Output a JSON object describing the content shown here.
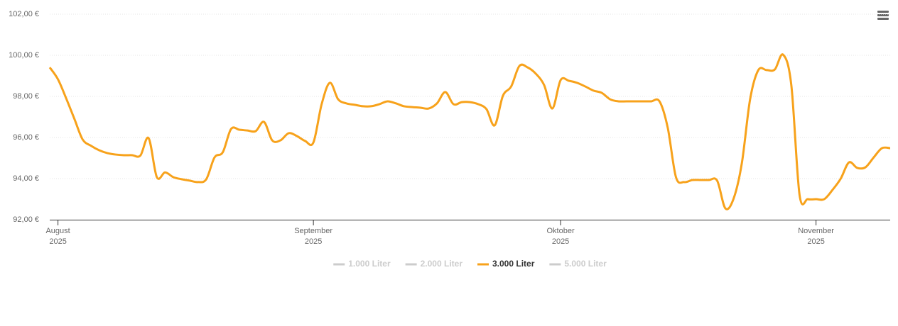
{
  "chart_data": {
    "type": "line",
    "categories": [
      null,
      "August 2025",
      null,
      null,
      null,
      null,
      null,
      null,
      null,
      null,
      null,
      null,
      null,
      null,
      null,
      null,
      null,
      null,
      null,
      null,
      null,
      null,
      null,
      null,
      null,
      null,
      null,
      null,
      null,
      null,
      null,
      null,
      "September 2025",
      null,
      null,
      null,
      null,
      null,
      null,
      null,
      null,
      null,
      null,
      null,
      null,
      null,
      null,
      null,
      null,
      null,
      null,
      null,
      null,
      null,
      null,
      null,
      null,
      null,
      null,
      null,
      null,
      null,
      "Oktober 2025",
      null,
      null,
      null,
      null,
      null,
      null,
      null,
      null,
      null,
      null,
      null,
      null,
      null,
      null,
      null,
      null,
      null,
      null,
      null,
      null,
      null,
      null,
      null,
      null,
      null,
      null,
      null,
      null,
      null,
      null,
      "November 2025",
      null,
      null,
      null,
      null,
      null,
      null,
      null,
      null,
      null
    ],
    "series": [
      {
        "name": "1.000 Liter",
        "visible": false
      },
      {
        "name": "2.000 Liter",
        "visible": false
      },
      {
        "name": "3.000 Liter",
        "visible": true,
        "color": "#f7a21b",
        "values": [
          99.41,
          98.83,
          97.9,
          96.9,
          95.9,
          95.6,
          95.38,
          95.24,
          95.17,
          95.14,
          95.14,
          95.12,
          95.97,
          94.07,
          94.3,
          94.07,
          93.97,
          93.9,
          93.83,
          93.97,
          95.03,
          95.28,
          96.41,
          96.38,
          96.34,
          96.31,
          96.76,
          95.86,
          95.86,
          96.21,
          96.07,
          95.83,
          95.76,
          97.62,
          98.66,
          97.86,
          97.66,
          97.59,
          97.52,
          97.52,
          97.62,
          97.76,
          97.66,
          97.52,
          97.48,
          97.45,
          97.41,
          97.66,
          98.21,
          97.62,
          97.72,
          97.72,
          97.62,
          97.38,
          96.59,
          98.03,
          98.48,
          99.48,
          99.41,
          99.1,
          98.55,
          97.41,
          98.79,
          98.76,
          98.66,
          98.48,
          98.28,
          98.17,
          97.86,
          97.76,
          97.76,
          97.76,
          97.76,
          97.76,
          97.76,
          96.48,
          94.07,
          93.83,
          93.93,
          93.93,
          93.93,
          93.9,
          92.55,
          93.03,
          94.76,
          97.86,
          99.28,
          99.28,
          99.31,
          100.03,
          98.55,
          93.21,
          93.0,
          93.0,
          93.0,
          93.45,
          94.0,
          94.79,
          94.52,
          94.55,
          95.03,
          95.48,
          95.48
        ]
      },
      {
        "name": "5.000 Liter",
        "visible": false
      }
    ],
    "ylim": [
      92,
      102
    ],
    "yticks": [
      {
        "value": 92,
        "label": "92,00 €"
      },
      {
        "value": 94,
        "label": "94,00 €"
      },
      {
        "value": 96,
        "label": "96,00 €"
      },
      {
        "value": 98,
        "label": "98,00 €"
      },
      {
        "value": 100,
        "label": "100,00 €"
      },
      {
        "value": 102,
        "label": "102,00 €"
      }
    ],
    "grid": true,
    "legend": "bottom"
  }
}
